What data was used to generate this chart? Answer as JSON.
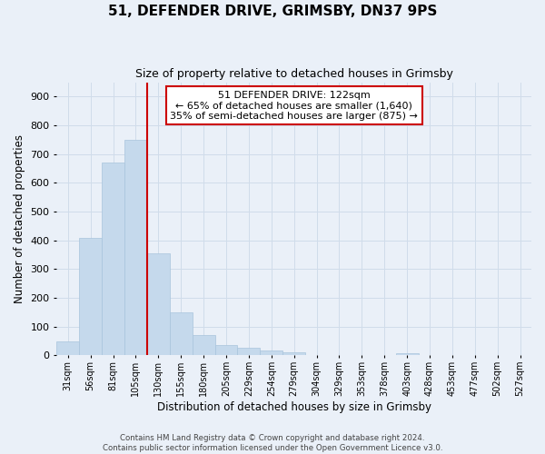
{
  "title": "51, DEFENDER DRIVE, GRIMSBY, DN37 9PS",
  "subtitle": "Size of property relative to detached houses in Grimsby",
  "xlabel": "Distribution of detached houses by size in Grimsby",
  "ylabel": "Number of detached properties",
  "bar_labels": [
    "31sqm",
    "56sqm",
    "81sqm",
    "105sqm",
    "130sqm",
    "155sqm",
    "180sqm",
    "205sqm",
    "229sqm",
    "254sqm",
    "279sqm",
    "304sqm",
    "329sqm",
    "353sqm",
    "378sqm",
    "403sqm",
    "428sqm",
    "453sqm",
    "477sqm",
    "502sqm",
    "527sqm"
  ],
  "bar_values": [
    50,
    410,
    670,
    750,
    355,
    150,
    70,
    37,
    28,
    17,
    10,
    0,
    0,
    0,
    0,
    8,
    0,
    0,
    0,
    0,
    0
  ],
  "bar_color": "#c5d9ec",
  "bar_edge_color": "#a8c4dc",
  "marker_line_color": "#cc0000",
  "marker_line_index": 3.5,
  "ylim": [
    0,
    950
  ],
  "yticks": [
    0,
    100,
    200,
    300,
    400,
    500,
    600,
    700,
    800,
    900
  ],
  "annotation_title": "51 DEFENDER DRIVE: 122sqm",
  "annotation_line1": "← 65% of detached houses are smaller (1,640)",
  "annotation_line2": "35% of semi-detached houses are larger (875) →",
  "annotation_box_facecolor": "#ffffff",
  "annotation_box_edgecolor": "#cc0000",
  "footer_line1": "Contains HM Land Registry data © Crown copyright and database right 2024.",
  "footer_line2": "Contains public sector information licensed under the Open Government Licence v3.0.",
  "background_color": "#eaf0f8",
  "grid_color": "#d0dcea"
}
